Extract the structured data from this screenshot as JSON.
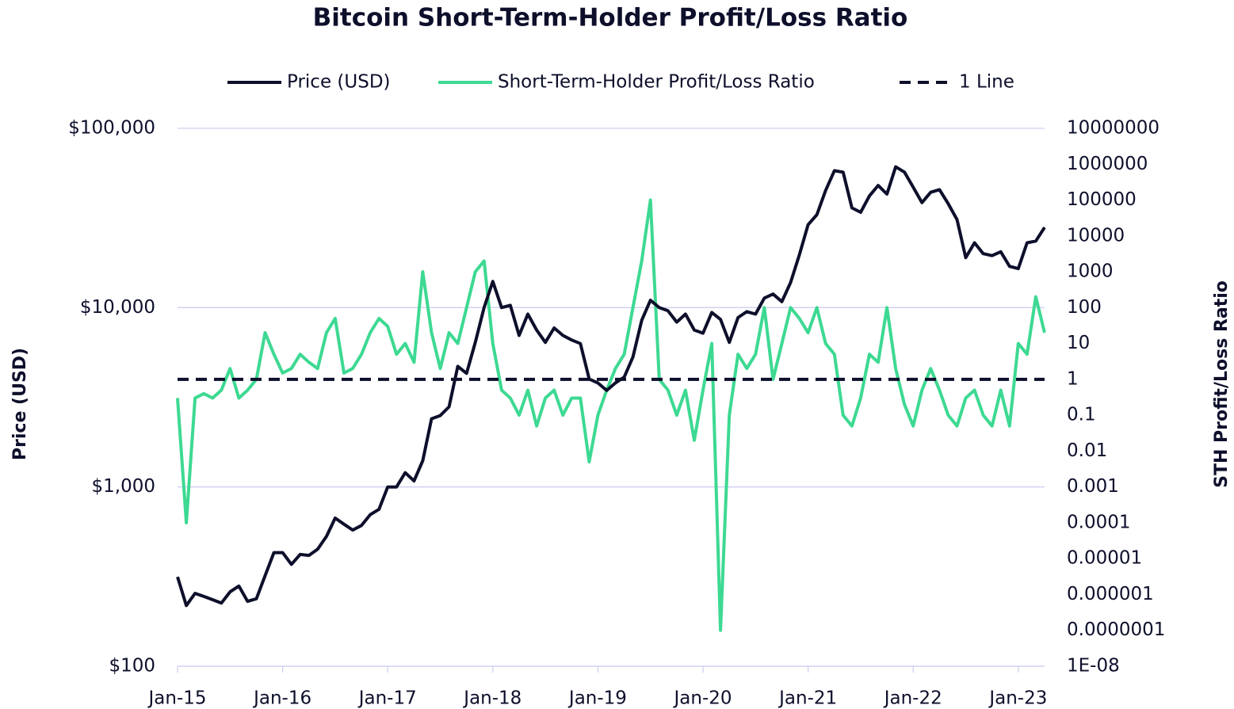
{
  "chart_data": {
    "type": "line",
    "title": "Bitcoin Short-Term-Holder Profit/Loss Ratio",
    "y_label": "Price (USD)",
    "y2_label": "STH Profit/Loss Ratio",
    "log_y": true,
    "log_y2": true,
    "grid": true,
    "legend": "top",
    "x": [
      "2015-01",
      "2015-02",
      "2015-03",
      "2015-04",
      "2015-05",
      "2015-06",
      "2015-07",
      "2015-08",
      "2015-09",
      "2015-10",
      "2015-11",
      "2015-12",
      "2016-01",
      "2016-02",
      "2016-03",
      "2016-04",
      "2016-05",
      "2016-06",
      "2016-07",
      "2016-08",
      "2016-09",
      "2016-10",
      "2016-11",
      "2016-12",
      "2017-01",
      "2017-02",
      "2017-03",
      "2017-04",
      "2017-05",
      "2017-06",
      "2017-07",
      "2017-08",
      "2017-09",
      "2017-10",
      "2017-11",
      "2017-12",
      "2018-01",
      "2018-02",
      "2018-03",
      "2018-04",
      "2018-05",
      "2018-06",
      "2018-07",
      "2018-08",
      "2018-09",
      "2018-10",
      "2018-11",
      "2018-12",
      "2019-01",
      "2019-02",
      "2019-03",
      "2019-04",
      "2019-05",
      "2019-06",
      "2019-07",
      "2019-08",
      "2019-09",
      "2019-10",
      "2019-11",
      "2019-12",
      "2020-01",
      "2020-02",
      "2020-03",
      "2020-04",
      "2020-05",
      "2020-06",
      "2020-07",
      "2020-08",
      "2020-09",
      "2020-10",
      "2020-11",
      "2020-12",
      "2021-01",
      "2021-02",
      "2021-03",
      "2021-04",
      "2021-05",
      "2021-06",
      "2021-07",
      "2021-08",
      "2021-09",
      "2021-10",
      "2021-11",
      "2021-12",
      "2022-01",
      "2022-02",
      "2022-03",
      "2022-04",
      "2022-05",
      "2022-06",
      "2022-07",
      "2022-08",
      "2022-09",
      "2022-10",
      "2022-11",
      "2022-12",
      "2023-01",
      "2023-02",
      "2023-03",
      "2023-04"
    ],
    "xlim": [
      "2015-01",
      "2023-04"
    ],
    "xticks": [
      {
        "value": "2015-01",
        "label": "Jan-15"
      },
      {
        "value": "2016-01",
        "label": "Jan-16"
      },
      {
        "value": "2017-01",
        "label": "Jan-17"
      },
      {
        "value": "2018-01",
        "label": "Jan-18"
      },
      {
        "value": "2019-01",
        "label": "Jan-19"
      },
      {
        "value": "2020-01",
        "label": "Jan-20"
      },
      {
        "value": "2021-01",
        "label": "Jan-21"
      },
      {
        "value": "2022-01",
        "label": "Jan-22"
      },
      {
        "value": "2023-01",
        "label": "Jan-23"
      }
    ],
    "ylim": [
      100,
      100000
    ],
    "yticks": [
      {
        "value": 100,
        "label": "$100"
      },
      {
        "value": 1000,
        "label": "$1,000"
      },
      {
        "value": 10000,
        "label": "$10,000"
      },
      {
        "value": 100000,
        "label": "$100,000"
      }
    ],
    "y2lim": [
      1e-08,
      10000000
    ],
    "y2ticks": [
      {
        "value": 1e-08,
        "label": "1E-08"
      },
      {
        "value": 1e-07,
        "label": "0.0000001"
      },
      1e-06,
      1e-05,
      0.0001,
      0.001,
      0.01,
      0.1,
      1,
      10,
      100,
      1000,
      10000,
      100000,
      1000000,
      10000000
    ],
    "series": [
      {
        "name": "Price (USD)",
        "color": "#0d0f2b",
        "axis": "y",
        "values": [
          315,
          218,
          255,
          245,
          235,
          225,
          260,
          280,
          230,
          238,
          320,
          430,
          430,
          370,
          420,
          415,
          450,
          530,
          670,
          620,
          575,
          610,
          700,
          750,
          1000,
          1000,
          1200,
          1080,
          1400,
          2400,
          2500,
          2800,
          4700,
          4300,
          6400,
          10000,
          14000,
          10000,
          10300,
          7000,
          9200,
          7500,
          6400,
          7700,
          7000,
          6600,
          6300,
          4000,
          3800,
          3450,
          3800,
          4100,
          5300,
          8500,
          11000,
          10000,
          9600,
          8300,
          9200,
          7500,
          7200,
          9400,
          8600,
          6400,
          8800,
          9500,
          9200,
          11300,
          11900,
          10800,
          13800,
          19700,
          29000,
          33000,
          45000,
          58000,
          57000,
          36000,
          34000,
          42000,
          48000,
          43000,
          61000,
          57000,
          47000,
          38500,
          44000,
          45500,
          38000,
          31000,
          19000,
          23000,
          20000,
          19500,
          20500,
          17000,
          16500,
          23000,
          23500,
          28000
        ]
      },
      {
        "name": "Short-Term-Holder Profit/Loss Ratio",
        "color": "#3dd992",
        "axis": "y2",
        "values": [
          0.3,
          0.0001,
          0.3,
          0.4,
          0.3,
          0.5,
          2,
          0.3,
          0.5,
          1,
          20,
          5,
          1.5,
          2,
          5,
          3,
          2,
          20,
          50,
          1.5,
          2,
          5,
          20,
          50,
          30,
          5,
          10,
          3,
          1000,
          20,
          2,
          20,
          10,
          100,
          1000,
          2000,
          10,
          0.5,
          0.3,
          0.1,
          0.5,
          0.05,
          0.3,
          0.5,
          0.1,
          0.3,
          0.3,
          0.005,
          0.1,
          0.5,
          2,
          5,
          100,
          2000,
          100000,
          1,
          0.5,
          0.1,
          0.5,
          0.02,
          0.5,
          10,
          1e-07,
          0.1,
          5,
          2,
          5,
          100,
          1,
          10,
          100,
          50,
          20,
          100,
          10,
          5,
          0.1,
          0.05,
          0.3,
          5,
          3,
          100,
          2,
          0.2,
          0.05,
          0.5,
          2,
          0.5,
          0.1,
          0.05,
          0.3,
          0.5,
          0.1,
          0.05,
          0.5,
          0.05,
          10,
          5,
          200,
          20
        ]
      }
    ],
    "reference_line": {
      "name": "1 Line",
      "value": 1,
      "axis": "y2",
      "color": "#0d0f2b",
      "dash": true
    }
  }
}
